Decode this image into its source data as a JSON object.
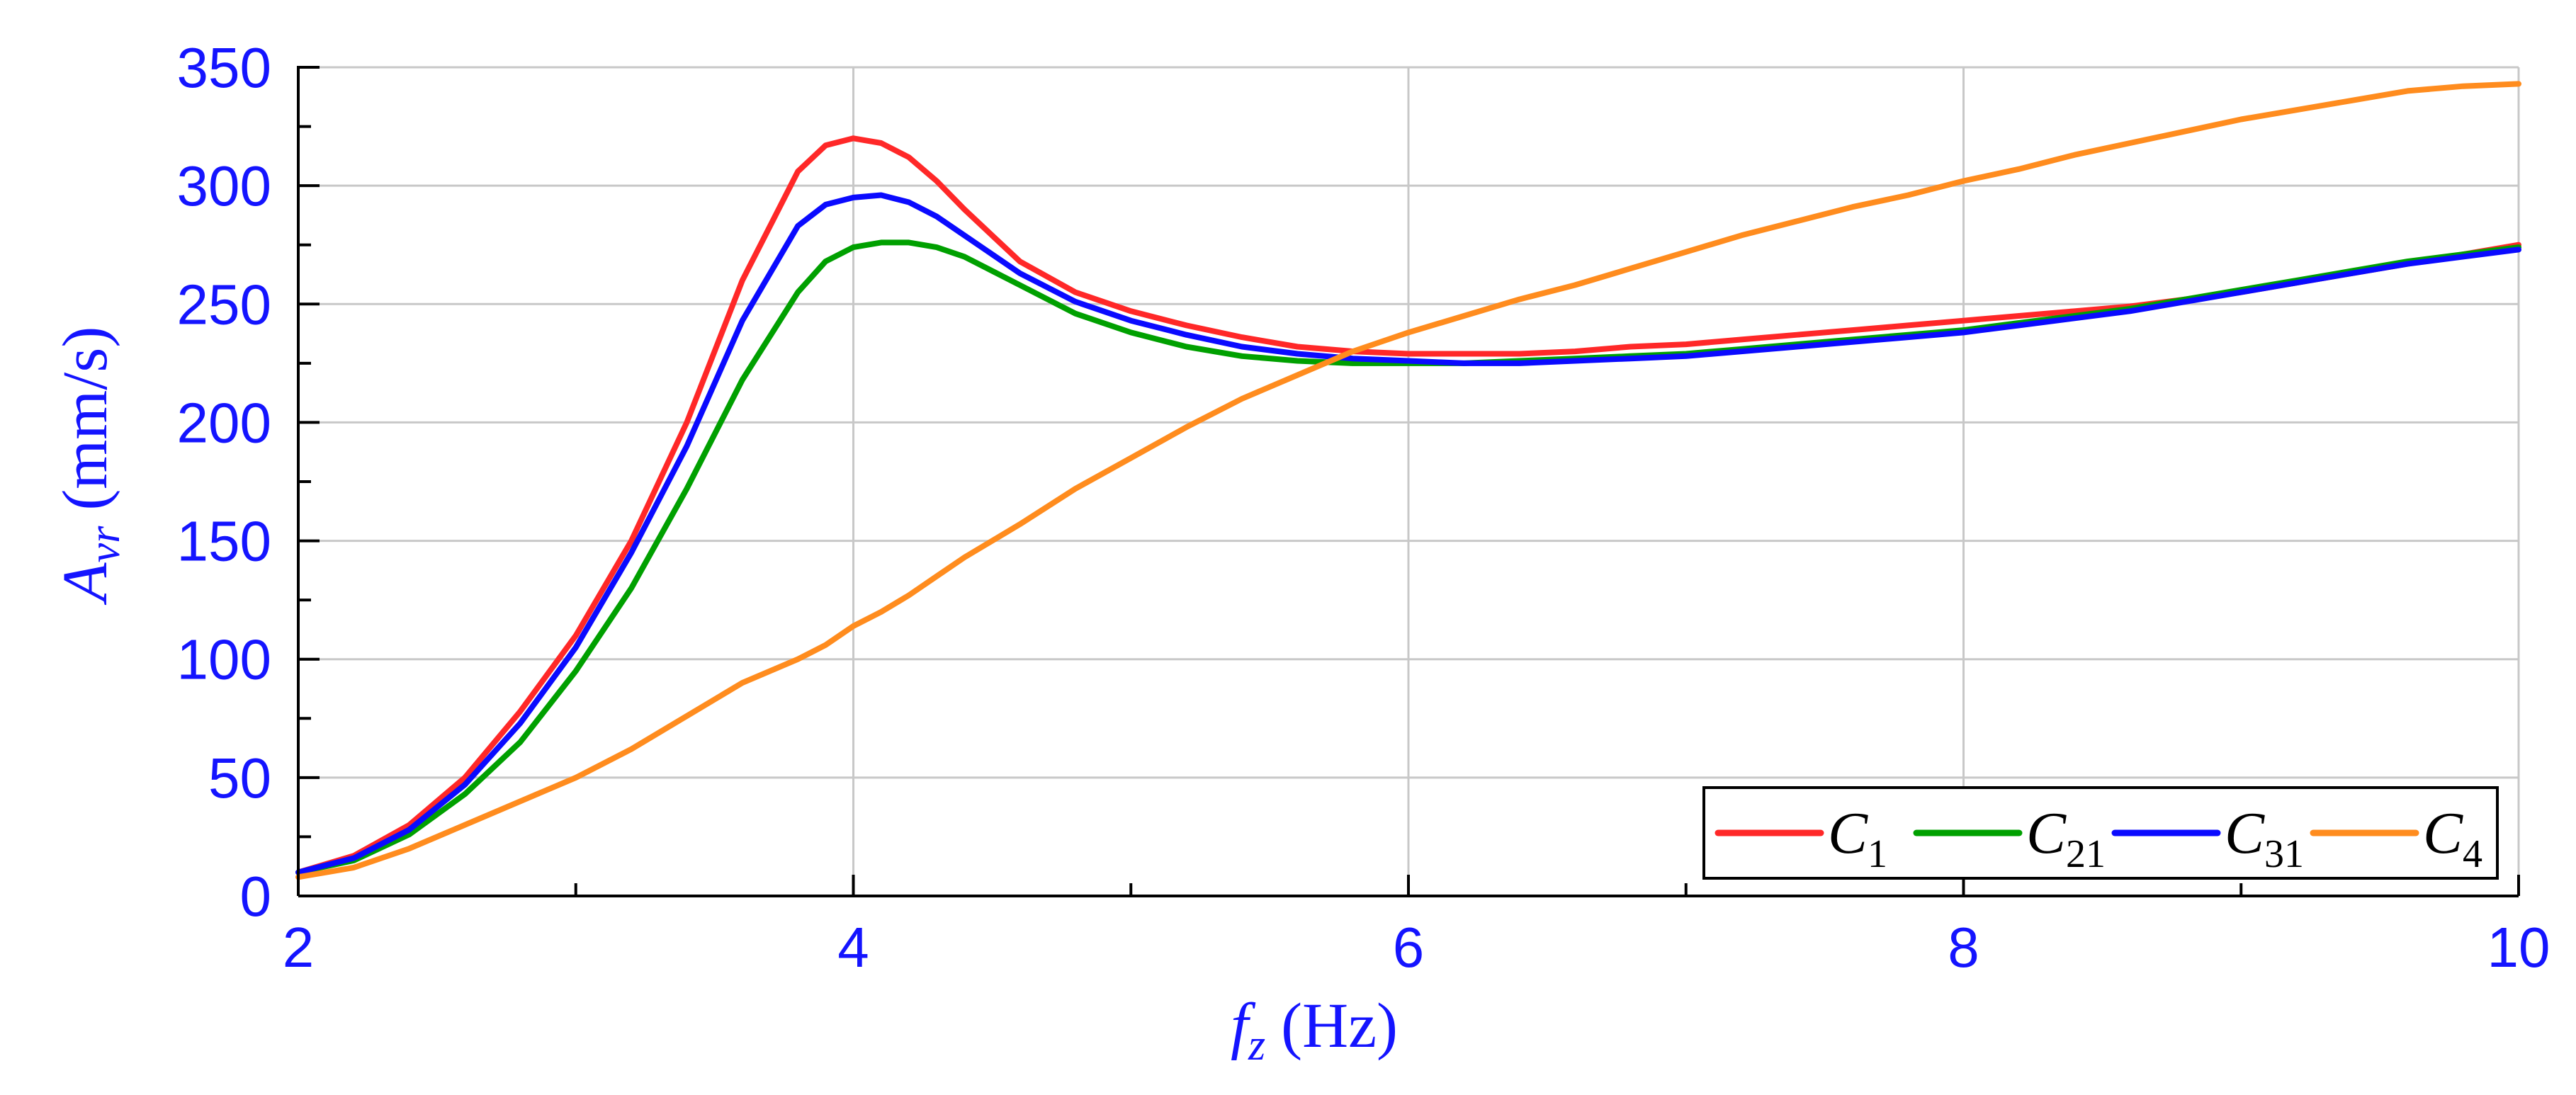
{
  "colors": {
    "axis_text": "#1414ff",
    "grid": "#c8c8c8",
    "axes": "#000000"
  },
  "chart_data": {
    "type": "line",
    "xlabel": {
      "symbol": "f",
      "subscript": "z",
      "unit": "(Hz)"
    },
    "ylabel": {
      "symbol": "A",
      "subscript": "vr",
      "unit": "(mm/s)"
    },
    "xlim": [
      2,
      10
    ],
    "ylim": [
      0,
      350
    ],
    "x_ticks": [
      "2",
      "4",
      "6",
      "8",
      "10"
    ],
    "y_ticks": [
      "0",
      "50",
      "100",
      "150",
      "200",
      "250",
      "300",
      "350"
    ],
    "grid": true,
    "legend_position": "bottom-right",
    "x": [
      2.0,
      2.2,
      2.4,
      2.6,
      2.8,
      3.0,
      3.2,
      3.4,
      3.6,
      3.8,
      3.9,
      4.0,
      4.1,
      4.2,
      4.3,
      4.4,
      4.6,
      4.8,
      5.0,
      5.2,
      5.4,
      5.6,
      5.8,
      6.0,
      6.2,
      6.4,
      6.6,
      6.8,
      7.0,
      7.2,
      7.4,
      7.6,
      7.8,
      8.0,
      8.2,
      8.4,
      8.6,
      8.8,
      9.0,
      9.2,
      9.4,
      9.6,
      9.8,
      10.0
    ],
    "series": [
      {
        "name": "C",
        "sub": "1",
        "color": "#ff2828",
        "values": [
          10,
          17,
          30,
          50,
          78,
          110,
          150,
          200,
          260,
          306,
          317,
          320,
          318,
          312,
          302,
          290,
          268,
          255,
          247,
          241,
          236,
          232,
          230,
          229,
          229,
          229,
          230,
          232,
          233,
          235,
          237,
          239,
          241,
          243,
          245,
          247,
          249,
          252,
          255,
          259,
          263,
          267,
          271,
          275
        ]
      },
      {
        "name": "C",
        "sub": "21",
        "color": "#00a000",
        "values": [
          10,
          15,
          26,
          43,
          65,
          95,
          130,
          172,
          218,
          255,
          268,
          274,
          276,
          276,
          274,
          270,
          258,
          246,
          238,
          232,
          228,
          226,
          225,
          225,
          225,
          226,
          227,
          228,
          229,
          231,
          233,
          235,
          237,
          239,
          242,
          245,
          248,
          252,
          256,
          260,
          264,
          268,
          271,
          274
        ]
      },
      {
        "name": "C",
        "sub": "31",
        "color": "#0a0aff",
        "values": [
          10,
          16,
          28,
          47,
          73,
          105,
          145,
          190,
          243,
          283,
          292,
          295,
          296,
          293,
          287,
          279,
          263,
          251,
          243,
          237,
          232,
          229,
          227,
          226,
          225,
          225,
          226,
          227,
          228,
          230,
          232,
          234,
          236,
          238,
          241,
          244,
          247,
          251,
          255,
          259,
          263,
          267,
          270,
          273
        ]
      },
      {
        "name": "C",
        "sub": "4",
        "color": "#ff8c1e",
        "values": [
          8,
          12,
          20,
          30,
          40,
          50,
          62,
          76,
          90,
          100,
          106,
          114,
          120,
          127,
          135,
          143,
          157,
          172,
          185,
          198,
          210,
          220,
          230,
          238,
          245,
          252,
          258,
          265,
          272,
          279,
          285,
          291,
          296,
          302,
          307,
          313,
          318,
          323,
          328,
          332,
          336,
          340,
          342,
          343
        ]
      }
    ]
  }
}
